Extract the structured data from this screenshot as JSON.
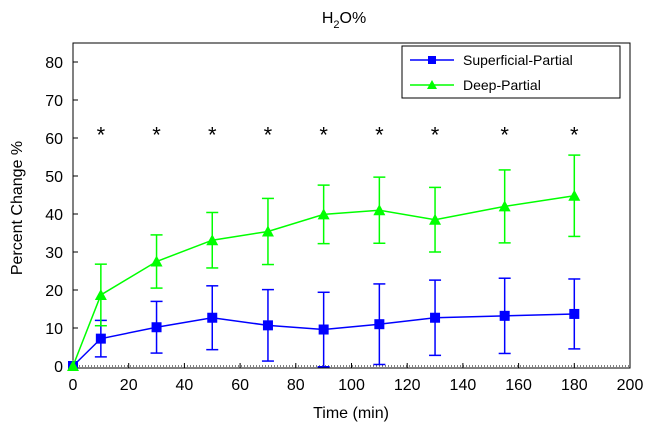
{
  "chart_data": {
    "type": "line",
    "title_main": "H",
    "title_sub": "2",
    "title_rest": "O%",
    "xlabel": "Time (min)",
    "ylabel": "Percent Change %",
    "xlim": [
      0,
      200
    ],
    "ylim": [
      0,
      85
    ],
    "xticks": [
      0,
      20,
      40,
      60,
      80,
      100,
      120,
      140,
      160,
      180,
      200
    ],
    "yticks": [
      0,
      10,
      20,
      30,
      40,
      50,
      60,
      70,
      80
    ],
    "legend_position": "top-right",
    "significance_marker": "*",
    "significance_x": [
      10,
      30,
      50,
      70,
      90,
      110,
      130,
      155,
      180
    ],
    "significance_y": 62,
    "series": [
      {
        "name": "Superficial-Partial",
        "color": "#0000ff",
        "marker": "square",
        "x": [
          0,
          10,
          30,
          50,
          70,
          90,
          110,
          130,
          155,
          180
        ],
        "y": [
          0,
          7.2,
          10.2,
          12.7,
          10.7,
          9.6,
          11.0,
          12.7,
          13.2,
          13.7
        ],
        "err": [
          0,
          4.8,
          6.8,
          8.4,
          9.4,
          9.8,
          10.6,
          9.9,
          9.9,
          9.2
        ]
      },
      {
        "name": "Deep-Partial",
        "color": "#00ff00",
        "marker": "triangle",
        "x": [
          0,
          10,
          30,
          50,
          70,
          90,
          110,
          130,
          155,
          180
        ],
        "y": [
          0,
          18.7,
          27.5,
          33.1,
          35.4,
          39.9,
          41.0,
          38.5,
          42.0,
          44.8
        ],
        "err": [
          0,
          8.1,
          7.0,
          7.3,
          8.7,
          7.7,
          8.7,
          8.5,
          9.6,
          10.7
        ]
      }
    ]
  }
}
